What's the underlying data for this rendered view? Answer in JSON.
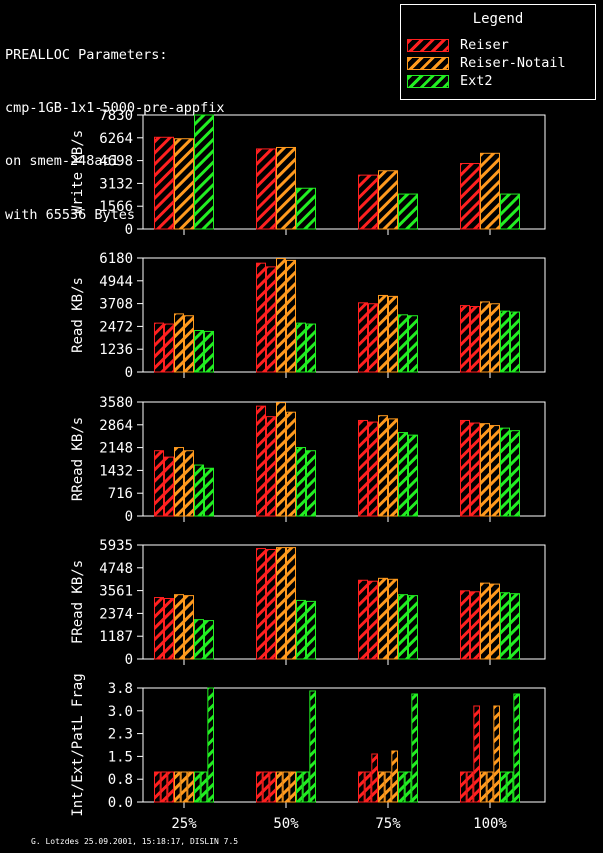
{
  "title_lines": [
    "PREALLOC Parameters:",
    "cmp-1GB-1x1-5000-pre-appfix",
    "on smem-248ac1",
    "with 65536 Bytes"
  ],
  "legend": {
    "title": "Legend",
    "items": [
      {
        "label": "Reiser",
        "color": "#ff2020"
      },
      {
        "label": "Reiser-Notail",
        "color": "#ff9a1e"
      },
      {
        "label": "Ext2",
        "color": "#22ee22"
      }
    ]
  },
  "footer": "G. Lotzdes 25.09.2001, 15:18:17, DISLIN 7.5",
  "chart_data": [
    {
      "type": "bar",
      "ylabel": "Write KB/s",
      "yticks": [
        "0",
        "1566",
        "3132",
        "4698",
        "6264",
        "7830"
      ],
      "ylim": [
        0,
        7830
      ],
      "categories": [
        "25%",
        "50%",
        "75%",
        "100%"
      ],
      "bars_per_series": 1,
      "series": [
        {
          "name": "Reiser",
          "values": [
            [
              6300
            ],
            [
              5500
            ],
            [
              3700
            ],
            [
              4500
            ]
          ]
        },
        {
          "name": "Reiser-Notail",
          "values": [
            [
              6200
            ],
            [
              5600
            ],
            [
              4000
            ],
            [
              5200
            ]
          ]
        },
        {
          "name": "Ext2",
          "values": [
            [
              7830
            ],
            [
              2800
            ],
            [
              2400
            ],
            [
              2400
            ]
          ]
        }
      ]
    },
    {
      "type": "bar",
      "ylabel": "Read KB/s",
      "yticks": [
        "0",
        "1236",
        "2472",
        "3708",
        "4944",
        "6180"
      ],
      "ylim": [
        0,
        6180
      ],
      "categories": [
        "25%",
        "50%",
        "75%",
        "100%"
      ],
      "bars_per_series": 2,
      "series": [
        {
          "name": "Reiser",
          "values": [
            [
              2650,
              2600
            ],
            [
              5900,
              5700
            ],
            [
              3750,
              3700
            ],
            [
              3600,
              3550
            ]
          ]
        },
        {
          "name": "Reiser-Notail",
          "values": [
            [
              3150,
              3050
            ],
            [
              6150,
              6050
            ],
            [
              4150,
              4100
            ],
            [
              3800,
              3700
            ]
          ]
        },
        {
          "name": "Ext2",
          "values": [
            [
              2250,
              2200
            ],
            [
              2650,
              2600
            ],
            [
              3100,
              3050
            ],
            [
              3300,
              3250
            ]
          ]
        }
      ]
    },
    {
      "type": "bar",
      "ylabel": "RRead KB/s",
      "yticks": [
        "0",
        "716",
        "1432",
        "2148",
        "2864",
        "3580"
      ],
      "ylim": [
        0,
        3580
      ],
      "categories": [
        "25%",
        "50%",
        "75%",
        "100%"
      ],
      "bars_per_series": 2,
      "series": [
        {
          "name": "Reiser",
          "values": [
            [
              2050,
              1850
            ],
            [
              3450,
              3120
            ],
            [
              3000,
              2950
            ],
            [
              3000,
              2920
            ]
          ]
        },
        {
          "name": "Reiser-Notail",
          "values": [
            [
              2150,
              2050
            ],
            [
              3560,
              3260
            ],
            [
              3150,
              3050
            ],
            [
              2900,
              2840
            ]
          ]
        },
        {
          "name": "Ext2",
          "values": [
            [
              1600,
              1500
            ],
            [
              2150,
              2050
            ],
            [
              2620,
              2540
            ],
            [
              2760,
              2680
            ]
          ]
        }
      ]
    },
    {
      "type": "bar",
      "ylabel": "FRead KB/s",
      "yticks": [
        "0",
        "1187",
        "2374",
        "3561",
        "4748",
        "5935"
      ],
      "ylim": [
        0,
        5935
      ],
      "categories": [
        "25%",
        "50%",
        "75%",
        "100%"
      ],
      "bars_per_series": 2,
      "series": [
        {
          "name": "Reiser",
          "values": [
            [
              3200,
              3150
            ],
            [
              5750,
              5700
            ],
            [
              4100,
              4050
            ],
            [
              3550,
              3500
            ]
          ]
        },
        {
          "name": "Reiser-Notail",
          "values": [
            [
              3350,
              3300
            ],
            [
              5800,
              5800
            ],
            [
              4200,
              4150
            ],
            [
              3950,
              3900
            ]
          ]
        },
        {
          "name": "Ext2",
          "values": [
            [
              2050,
              2000
            ],
            [
              3050,
              3000
            ],
            [
              3350,
              3300
            ],
            [
              3450,
              3400
            ]
          ]
        }
      ]
    },
    {
      "type": "bar",
      "ylabel": "Int/Ext/PatL Frag",
      "yticks": [
        "0.0",
        "0.8",
        "1.5",
        "2.3",
        "3.0",
        "3.8"
      ],
      "ylim": [
        0,
        3.8
      ],
      "categories": [
        "25%",
        "50%",
        "75%",
        "100%"
      ],
      "bars_per_series": 3,
      "series": [
        {
          "name": "Reiser",
          "values": [
            [
              1.0,
              1.0,
              1.0
            ],
            [
              1.0,
              1.0,
              1.0
            ],
            [
              1.0,
              1.0,
              1.6
            ],
            [
              1.0,
              1.0,
              3.2
            ]
          ]
        },
        {
          "name": "Reiser-Notail",
          "values": [
            [
              1.0,
              1.0,
              1.0
            ],
            [
              1.0,
              1.0,
              1.0
            ],
            [
              1.0,
              1.0,
              1.7
            ],
            [
              1.0,
              1.0,
              3.2
            ]
          ]
        },
        {
          "name": "Ext2",
          "values": [
            [
              1.0,
              1.0,
              3.8
            ],
            [
              1.0,
              1.0,
              3.7
            ],
            [
              1.0,
              1.0,
              3.6
            ],
            [
              1.0,
              1.0,
              3.6
            ]
          ]
        }
      ]
    }
  ]
}
